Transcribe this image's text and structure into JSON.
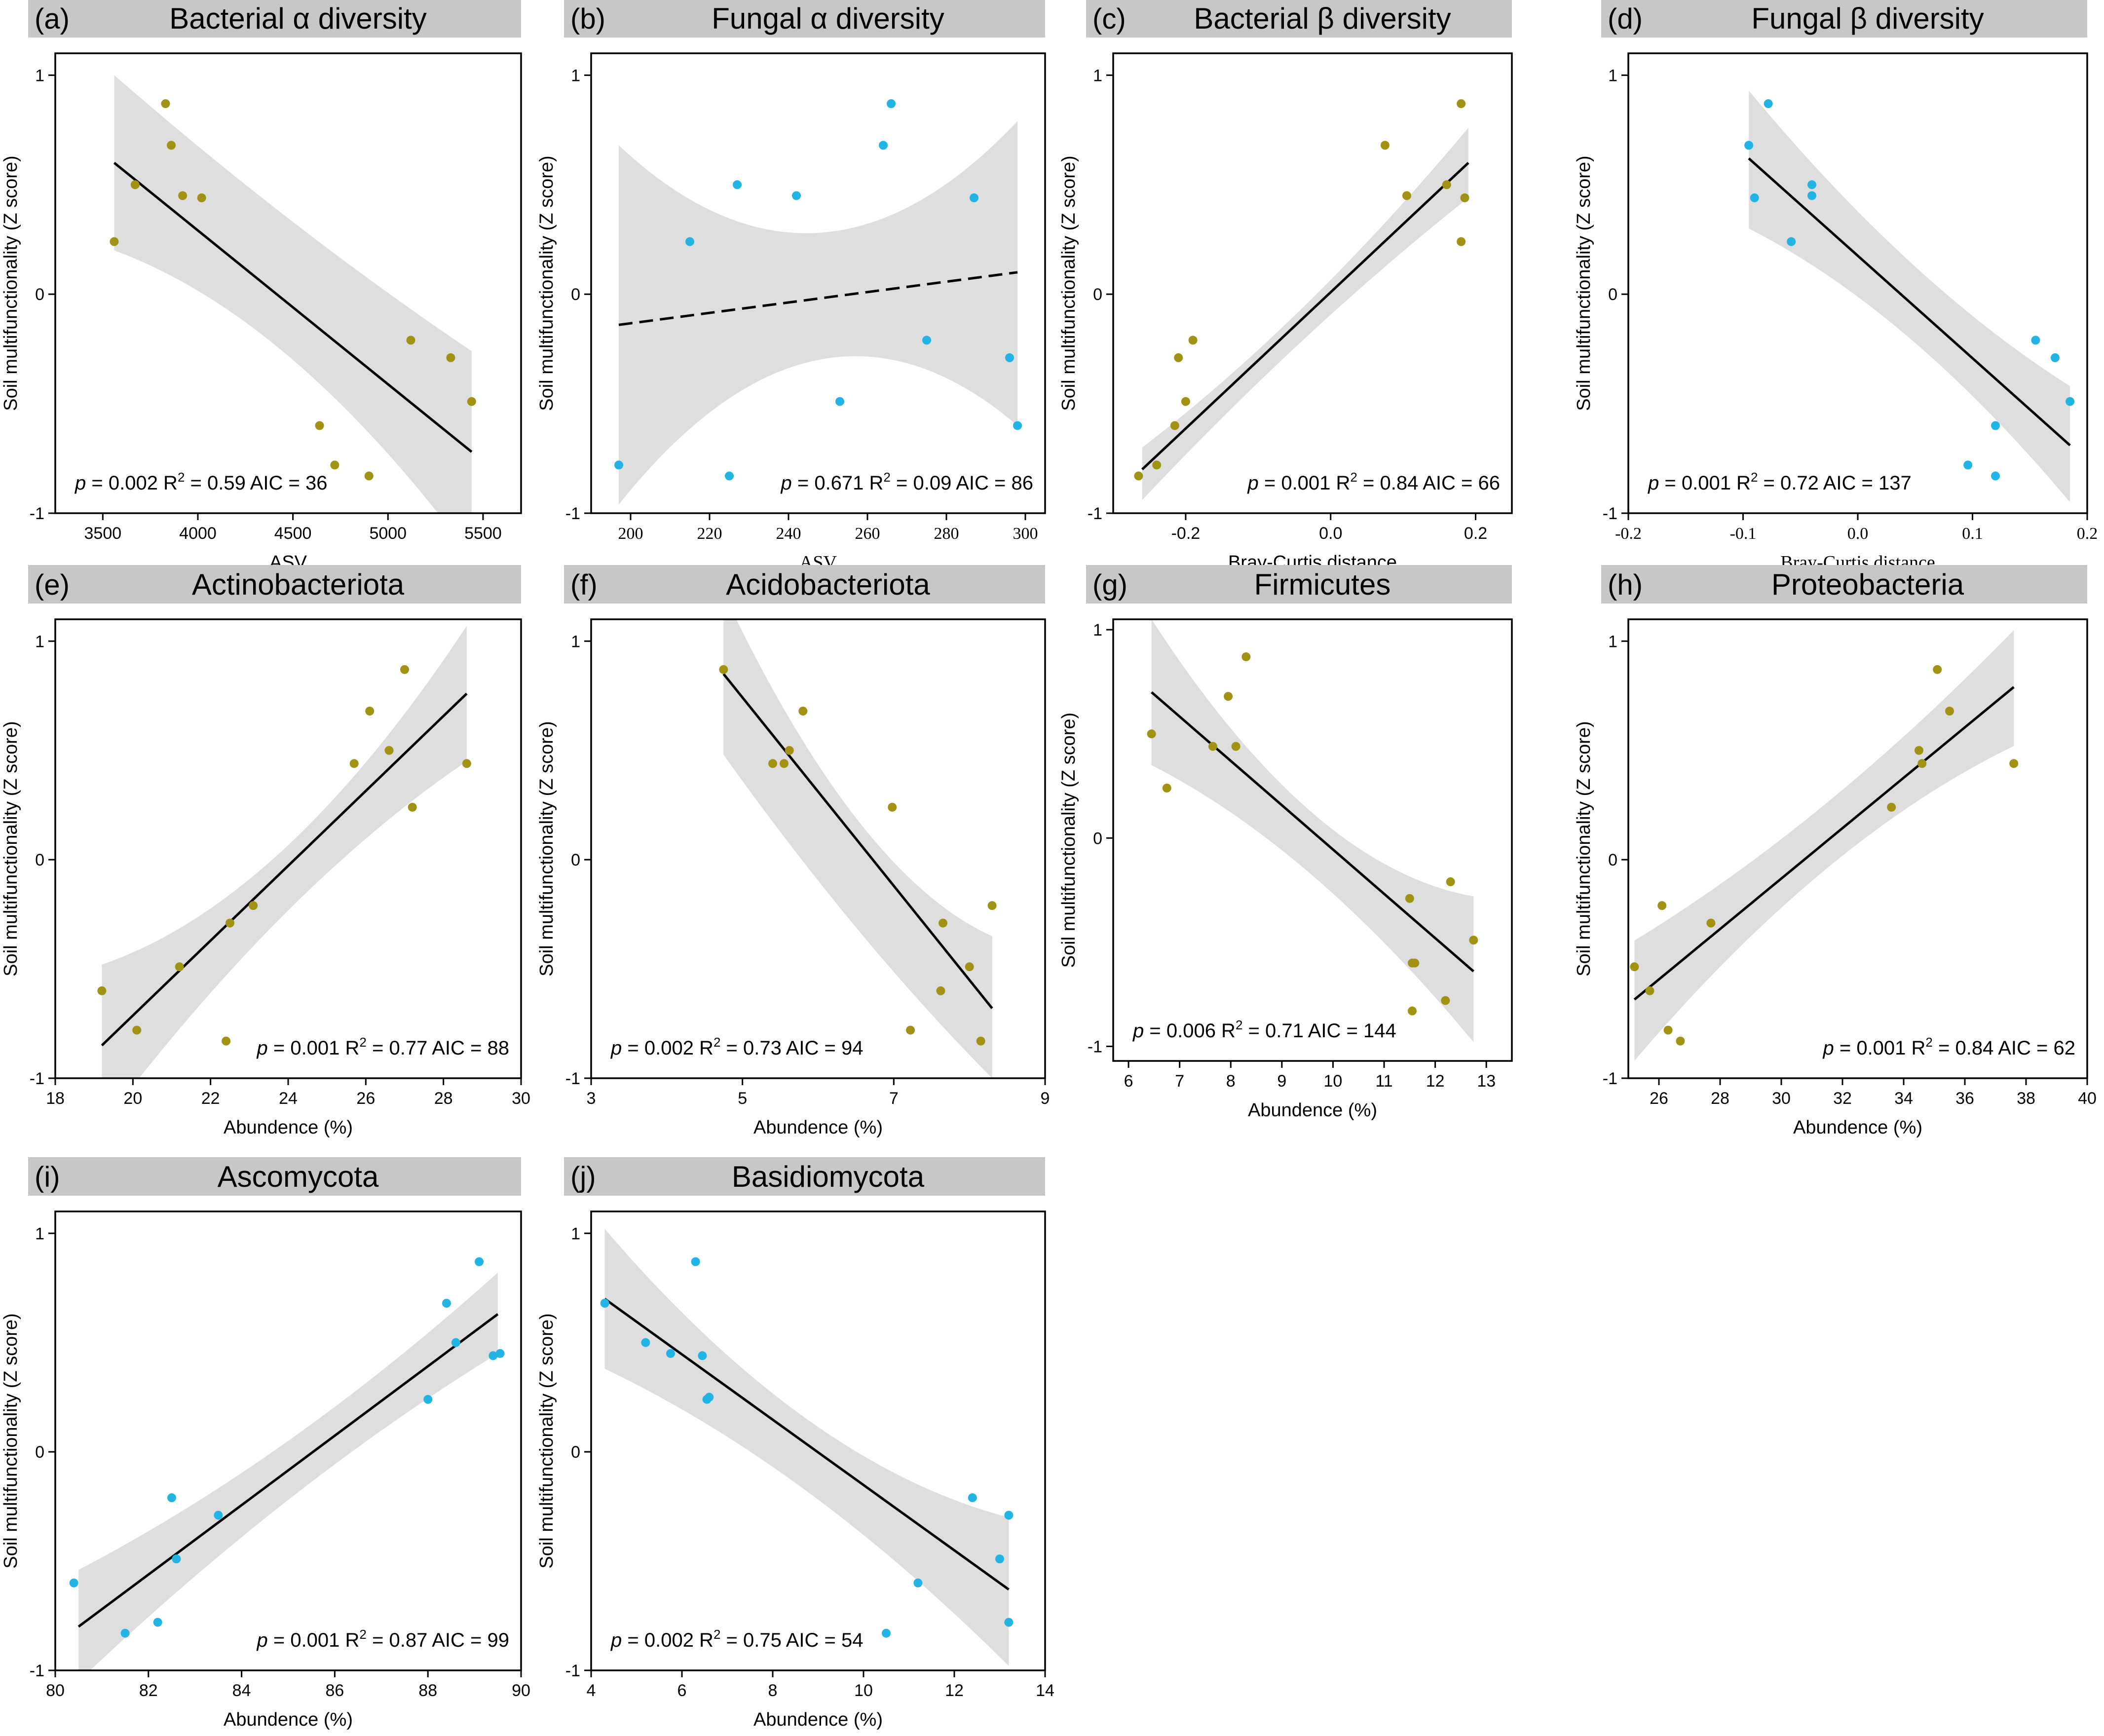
{
  "colors": {
    "bacteria": "#a19214",
    "fungi": "#22b4e4",
    "ci_band": "#dedede",
    "title_bar": "#c7c7c7",
    "line": "#000000"
  },
  "chart_data": [
    {
      "id": "a",
      "type": "scatter",
      "label": "(a)",
      "title": "Bacterial α diversity",
      "xlabel": "ASV",
      "ylabel": "Soil multifunctionality (Z score)",
      "serif_x": false,
      "xlim": [
        3250,
        5700
      ],
      "xticks": [
        3500,
        4000,
        4500,
        5000,
        5500
      ],
      "ylim": [
        -1,
        1.1
      ],
      "yticks": [
        -1,
        0,
        1
      ],
      "group": "bacteria",
      "points": [
        [
          3560,
          0.24
        ],
        [
          3670,
          0.5
        ],
        [
          3830,
          0.87
        ],
        [
          3860,
          0.68
        ],
        [
          3920,
          0.45
        ],
        [
          4020,
          0.44
        ],
        [
          4640,
          -0.6
        ],
        [
          4720,
          -0.78
        ],
        [
          4900,
          -0.83
        ],
        [
          5120,
          -0.21
        ],
        [
          5330,
          -0.29
        ],
        [
          5440,
          -0.49
        ]
      ],
      "fit": {
        "x1": 3560,
        "y1": 0.6,
        "x2": 5440,
        "y2": -0.72,
        "dashed": false
      },
      "ci": {
        "upper_start": 1.0,
        "upper_mid": 0.33,
        "upper_end": -0.26,
        "lower_start": 0.2,
        "lower_mid": -0.3,
        "lower_end": -1.2
      },
      "stats": {
        "p_label": "p",
        "rest": " = 0.002 R",
        "sup": "2",
        "tail": " = 0.59 AIC = 36"
      }
    },
    {
      "id": "b",
      "type": "scatter",
      "label": "(b)",
      "title": "Fungal α diversity",
      "xlabel": "ASV",
      "ylabel": "Soil multifunctionality (Z score)",
      "serif_x": true,
      "xlim": [
        190,
        305
      ],
      "xticks": [
        200,
        220,
        240,
        260,
        280,
        300
      ],
      "ylim": [
        -1,
        1.1
      ],
      "yticks": [
        -1,
        0,
        1
      ],
      "group": "fungi",
      "points": [
        [
          197,
          -0.78
        ],
        [
          215,
          0.24
        ],
        [
          225,
          -0.83
        ],
        [
          227,
          0.5
        ],
        [
          242,
          0.45
        ],
        [
          253,
          -0.49
        ],
        [
          264,
          0.68
        ],
        [
          266,
          0.87
        ],
        [
          275,
          -0.21
        ],
        [
          287,
          0.44
        ],
        [
          296,
          -0.29
        ],
        [
          298,
          -0.6
        ]
      ],
      "fit": {
        "x1": 197,
        "y1": -0.14,
        "x2": 298,
        "y2": 0.1,
        "dashed": true
      },
      "ci": {
        "upper_start": 0.68,
        "upper_mid": 0.28,
        "upper_end": 0.79,
        "lower_start": -0.96,
        "lower_mid": -0.3,
        "lower_end": -0.6
      },
      "stats": {
        "p_label": "p",
        "rest": " = 0.671 R",
        "sup": "2",
        "tail": " = 0.09 AIC = 86"
      }
    },
    {
      "id": "c",
      "type": "scatter",
      "label": "(c)",
      "title": "Bacterial β diversity",
      "xlabel": "Bray-Curtis distance",
      "ylabel": "Soil multifunctionality (Z score)",
      "serif_x": false,
      "xlim": [
        -0.3,
        0.25
      ],
      "xticks": [
        -0.2,
        0.0,
        0.2
      ],
      "xtick_labels": [
        "-0.2",
        "0.0",
        "0.2"
      ],
      "ylim": [
        -1,
        1.1
      ],
      "yticks": [
        -1,
        0,
        1
      ],
      "group": "bacteria",
      "points": [
        [
          -0.265,
          -0.83
        ],
        [
          -0.24,
          -0.78
        ],
        [
          -0.215,
          -0.6
        ],
        [
          -0.21,
          -0.29
        ],
        [
          -0.2,
          -0.49
        ],
        [
          -0.19,
          -0.21
        ],
        [
          0.075,
          0.68
        ],
        [
          0.105,
          0.45
        ],
        [
          0.16,
          0.5
        ],
        [
          0.18,
          0.87
        ],
        [
          0.18,
          0.24
        ],
        [
          0.185,
          0.44
        ]
      ],
      "fit": {
        "x1": -0.26,
        "y1": -0.8,
        "x2": 0.19,
        "y2": 0.6,
        "dashed": false
      },
      "ci": {
        "upper_start": -0.7,
        "upper_mid": -0.05,
        "upper_end": 0.76,
        "lower_start": -0.94,
        "lower_mid": -0.2,
        "lower_end": 0.44
      },
      "stats": {
        "p_label": "p",
        "rest": " = 0.001 R",
        "sup": "2",
        "tail": " = 0.84 AIC = 66"
      }
    },
    {
      "id": "d",
      "type": "scatter",
      "label": "(d)",
      "title": "Fungal β diversity",
      "xlabel": "Bray-Curtis distance",
      "ylabel": "Soil multifunctionality (Z score)",
      "serif_x": true,
      "xlim": [
        -0.2,
        0.2
      ],
      "xticks": [
        -0.2,
        -0.1,
        0.0,
        0.1,
        0.2
      ],
      "xtick_labels": [
        "-0.2",
        "-0.1",
        "0.0",
        "0.1",
        "0.2"
      ],
      "ylim": [
        -1,
        1.1
      ],
      "yticks": [
        -1,
        0,
        1
      ],
      "group": "fungi",
      "points": [
        [
          -0.095,
          0.68
        ],
        [
          -0.09,
          0.44
        ],
        [
          -0.078,
          0.87
        ],
        [
          -0.058,
          0.24
        ],
        [
          -0.04,
          0.5
        ],
        [
          -0.04,
          0.45
        ],
        [
          0.096,
          -0.78
        ],
        [
          0.12,
          -0.6
        ],
        [
          0.12,
          -0.83
        ],
        [
          0.155,
          -0.21
        ],
        [
          0.172,
          -0.29
        ],
        [
          0.185,
          -0.49
        ]
      ],
      "fit": {
        "x1": -0.095,
        "y1": 0.62,
        "x2": 0.185,
        "y2": -0.69,
        "dashed": false
      },
      "ci": {
        "upper_start": 0.93,
        "upper_mid": 0.15,
        "upper_end": -0.42,
        "lower_start": 0.3,
        "lower_mid": -0.2,
        "lower_end": -0.95
      },
      "stats": {
        "p_label": "p",
        "rest": " = 0.001 R",
        "sup": "2",
        "tail": " = 0.72 AIC = 137"
      }
    },
    {
      "id": "e",
      "type": "scatter",
      "label": "(e)",
      "title": "Actinobacteriota",
      "xlabel": "Abundence (%)",
      "ylabel": "Soil multifunctionality (Z score)",
      "serif_x": false,
      "xlim": [
        18,
        30
      ],
      "xticks": [
        18,
        20,
        22,
        24,
        26,
        28,
        30
      ],
      "ylim": [
        -1,
        1.1
      ],
      "yticks": [
        -1,
        0,
        1
      ],
      "group": "bacteria",
      "points": [
        [
          19.2,
          -0.6
        ],
        [
          20.1,
          -0.78
        ],
        [
          21.2,
          -0.49
        ],
        [
          22.4,
          -0.83
        ],
        [
          22.5,
          -0.29
        ],
        [
          23.1,
          -0.21
        ],
        [
          25.7,
          0.44
        ],
        [
          26.1,
          0.68
        ],
        [
          26.6,
          0.5
        ],
        [
          27.0,
          0.87
        ],
        [
          27.2,
          0.24
        ],
        [
          28.6,
          0.44
        ]
      ],
      "fit": {
        "x1": 19.2,
        "y1": -0.85,
        "x2": 28.6,
        "y2": 0.76,
        "dashed": false
      },
      "ci": {
        "upper_start": -0.48,
        "upper_mid": 0.05,
        "upper_end": 1.07,
        "lower_start": -1.22,
        "lower_mid": -0.25,
        "lower_end": 0.45
      },
      "stats": {
        "p_label": "p",
        "rest": " = 0.001 R",
        "sup": "2",
        "tail": " = 0.77 AIC = 88"
      }
    },
    {
      "id": "f",
      "type": "scatter",
      "label": "(f)",
      "title": "Acidobacteriota",
      "xlabel": "Abundence (%)",
      "ylabel": "Soil multifunctionality (Z score)",
      "serif_x": false,
      "xlim": [
        3,
        9
      ],
      "xticks": [
        3,
        5,
        7,
        9
      ],
      "ylim": [
        -1,
        1.1
      ],
      "yticks": [
        -1,
        0,
        1
      ],
      "group": "bacteria",
      "points": [
        [
          4.75,
          0.87
        ],
        [
          5.4,
          0.44
        ],
        [
          5.55,
          0.44
        ],
        [
          5.62,
          0.5
        ],
        [
          5.8,
          0.68
        ],
        [
          6.98,
          0.24
        ],
        [
          7.22,
          -0.78
        ],
        [
          7.65,
          -0.29
        ],
        [
          7.62,
          -0.6
        ],
        [
          8.0,
          -0.49
        ],
        [
          8.15,
          -0.83
        ],
        [
          8.3,
          -0.21
        ]
      ],
      "fit": {
        "x1": 4.75,
        "y1": 0.85,
        "x2": 8.3,
        "y2": -0.68,
        "dashed": false
      },
      "ci": {
        "upper_start": 1.22,
        "upper_mid": 0.18,
        "upper_end": -0.35,
        "lower_start": 0.48,
        "lower_mid": -0.32,
        "lower_end": -1.0
      },
      "stats": {
        "p_label": "p",
        "rest": " = 0.002 R",
        "sup": "2",
        "tail": " = 0.73 AIC = 94"
      }
    },
    {
      "id": "g",
      "type": "scatter",
      "label": "(g)",
      "title": "Firmicutes",
      "xlabel": "Abundence (%)",
      "ylabel": "Soil multifunctionality (Z score)",
      "serif_x": false,
      "xlim": [
        5.7,
        13.5
      ],
      "xticks": [
        6,
        7,
        8,
        9,
        10,
        11,
        12,
        13
      ],
      "ylim": [
        -1.07,
        1.05
      ],
      "yticks": [
        -1,
        0,
        1
      ],
      "group": "bacteria",
      "points": [
        [
          6.45,
          0.5
        ],
        [
          6.75,
          0.24
        ],
        [
          7.65,
          0.44
        ],
        [
          7.95,
          0.68
        ],
        [
          8.1,
          0.44
        ],
        [
          8.3,
          0.87
        ],
        [
          11.5,
          -0.29
        ],
        [
          11.55,
          -0.6
        ],
        [
          11.6,
          -0.6
        ],
        [
          11.55,
          -0.83
        ],
        [
          12.2,
          -0.78
        ],
        [
          12.3,
          -0.21
        ],
        [
          12.75,
          -0.49
        ]
      ],
      "fit": {
        "x1": 6.45,
        "y1": 0.7,
        "x2": 12.75,
        "y2": -0.64,
        "dashed": false
      },
      "ci": {
        "upper_start": 1.05,
        "upper_mid": 0.12,
        "upper_end": -0.28,
        "lower_start": 0.35,
        "lower_mid": -0.18,
        "lower_end": -0.98
      },
      "stats": {
        "p_label": "p",
        "rest": " = 0.006 R",
        "sup": "2",
        "tail": " = 0.71 AIC = 144"
      }
    },
    {
      "id": "h",
      "type": "scatter",
      "label": "(h)",
      "title": "Proteobacteria",
      "xlabel": "Abundence (%)",
      "ylabel": "Soil multifunctionality (Z score)",
      "serif_x": false,
      "xlim": [
        25,
        40
      ],
      "xticks": [
        26,
        28,
        30,
        32,
        34,
        36,
        38,
        40
      ],
      "ylim": [
        -1,
        1.1
      ],
      "yticks": [
        -1,
        0,
        1
      ],
      "group": "bacteria",
      "points": [
        [
          25.2,
          -0.49
        ],
        [
          25.7,
          -0.6
        ],
        [
          26.1,
          -0.21
        ],
        [
          26.3,
          -0.78
        ],
        [
          26.7,
          -0.83
        ],
        [
          27.7,
          -0.29
        ],
        [
          33.6,
          0.24
        ],
        [
          34.5,
          0.5
        ],
        [
          34.6,
          0.44
        ],
        [
          35.1,
          0.87
        ],
        [
          35.5,
          0.68
        ],
        [
          37.6,
          0.44
        ]
      ],
      "fit": {
        "x1": 25.2,
        "y1": -0.64,
        "x2": 37.6,
        "y2": 0.79,
        "dashed": false
      },
      "ci": {
        "upper_start": -0.37,
        "upper_mid": 0.25,
        "upper_end": 1.05,
        "lower_start": -0.92,
        "lower_mid": -0.05,
        "lower_end": 0.52
      },
      "stats": {
        "p_label": "p",
        "rest": " = 0.001 R",
        "sup": "2",
        "tail": " = 0.84 AIC = 62"
      }
    },
    {
      "id": "i",
      "type": "scatter",
      "label": "(i)",
      "title": "Ascomycota",
      "xlabel": "Abundence (%)",
      "ylabel": "Soil multifunctionality (Z score)",
      "serif_x": false,
      "xlim": [
        80,
        90
      ],
      "xticks": [
        80,
        82,
        84,
        86,
        88,
        90
      ],
      "ylim": [
        -1,
        1.1
      ],
      "yticks": [
        -1,
        0,
        1
      ],
      "group": "fungi",
      "points": [
        [
          80.4,
          -0.6
        ],
        [
          81.5,
          -0.83
        ],
        [
          82.2,
          -0.78
        ],
        [
          82.5,
          -0.21
        ],
        [
          82.6,
          -0.49
        ],
        [
          83.5,
          -0.29
        ],
        [
          88.0,
          0.24
        ],
        [
          88.4,
          0.68
        ],
        [
          88.6,
          0.5
        ],
        [
          89.1,
          0.87
        ],
        [
          89.4,
          0.44
        ],
        [
          89.55,
          0.45
        ]
      ],
      "fit": {
        "x1": 80.5,
        "y1": -0.8,
        "x2": 89.5,
        "y2": 0.63,
        "dashed": false
      },
      "ci": {
        "upper_start": -0.54,
        "upper_mid": 0.05,
        "upper_end": 0.82,
        "lower_start": -1.05,
        "lower_mid": -0.22,
        "lower_end": 0.45
      },
      "stats": {
        "p_label": "p",
        "rest": " = 0.001 R",
        "sup": "2",
        "tail": " = 0.87 AIC = 99"
      }
    },
    {
      "id": "j",
      "type": "scatter",
      "label": "(j)",
      "title": "Basidiomycota",
      "xlabel": "Abundence (%)",
      "ylabel": "Soil multifunctionality (Z score)",
      "serif_x": false,
      "xlim": [
        4,
        14
      ],
      "xticks": [
        4,
        6,
        8,
        10,
        12,
        14
      ],
      "ylim": [
        -1,
        1.1
      ],
      "yticks": [
        -1,
        0,
        1
      ],
      "group": "fungi",
      "points": [
        [
          4.3,
          0.68
        ],
        [
          5.2,
          0.5
        ],
        [
          5.75,
          0.45
        ],
        [
          6.3,
          0.87
        ],
        [
          6.45,
          0.44
        ],
        [
          6.55,
          0.24
        ],
        [
          6.6,
          0.25
        ],
        [
          10.5,
          -0.83
        ],
        [
          11.2,
          -0.6
        ],
        [
          12.4,
          -0.21
        ],
        [
          13.0,
          -0.49
        ],
        [
          13.2,
          -0.29
        ],
        [
          13.2,
          -0.78
        ]
      ],
      "fit": {
        "x1": 4.3,
        "y1": 0.7,
        "x2": 13.2,
        "y2": -0.63,
        "dashed": false
      },
      "ci": {
        "upper_start": 1.02,
        "upper_mid": 0.15,
        "upper_end": -0.3,
        "lower_start": 0.38,
        "lower_mid": -0.18,
        "lower_end": -0.98
      },
      "stats": {
        "p_label": "p",
        "rest": " = 0.002 R",
        "sup": "2",
        "tail": " = 0.75 AIC = 54"
      }
    }
  ]
}
